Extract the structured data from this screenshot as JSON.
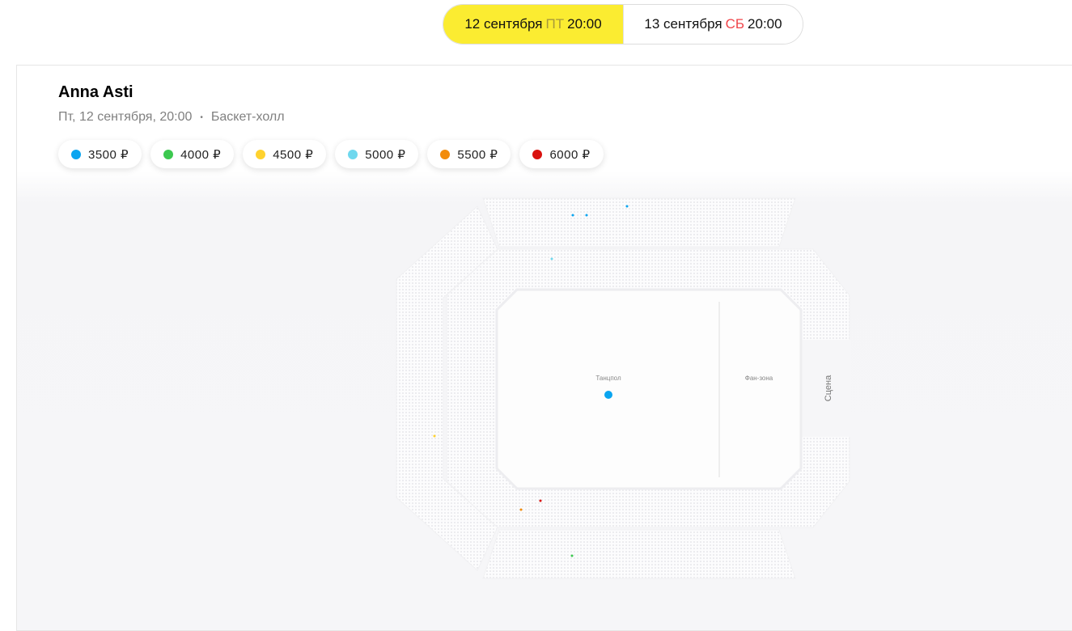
{
  "dates": [
    {
      "day": "12 сентября",
      "weekday": "ПТ",
      "time": "20:00",
      "active": true
    },
    {
      "day": "13 сентября",
      "weekday": "СБ",
      "time": "20:00",
      "active": false
    }
  ],
  "event": {
    "title": "Anna Asti",
    "date": "Пт, 12 сентября, 20:00",
    "separator": "•",
    "venue": "Баскет-холл"
  },
  "prices": [
    {
      "label": "3500 ₽",
      "color": "#0aa5f0"
    },
    {
      "label": "4000 ₽",
      "color": "#3cc84f"
    },
    {
      "label": "4500 ₽",
      "color": "#ffd22e"
    },
    {
      "label": "5000 ₽",
      "color": "#6fd8ee"
    },
    {
      "label": "5500 ₽",
      "color": "#f28c0c"
    },
    {
      "label": "6000 ₽",
      "color": "#d9120f"
    }
  ],
  "map": {
    "dance_floor": "Танцпол",
    "fan_zone": "Фан-зона",
    "stage": "Сцена"
  }
}
